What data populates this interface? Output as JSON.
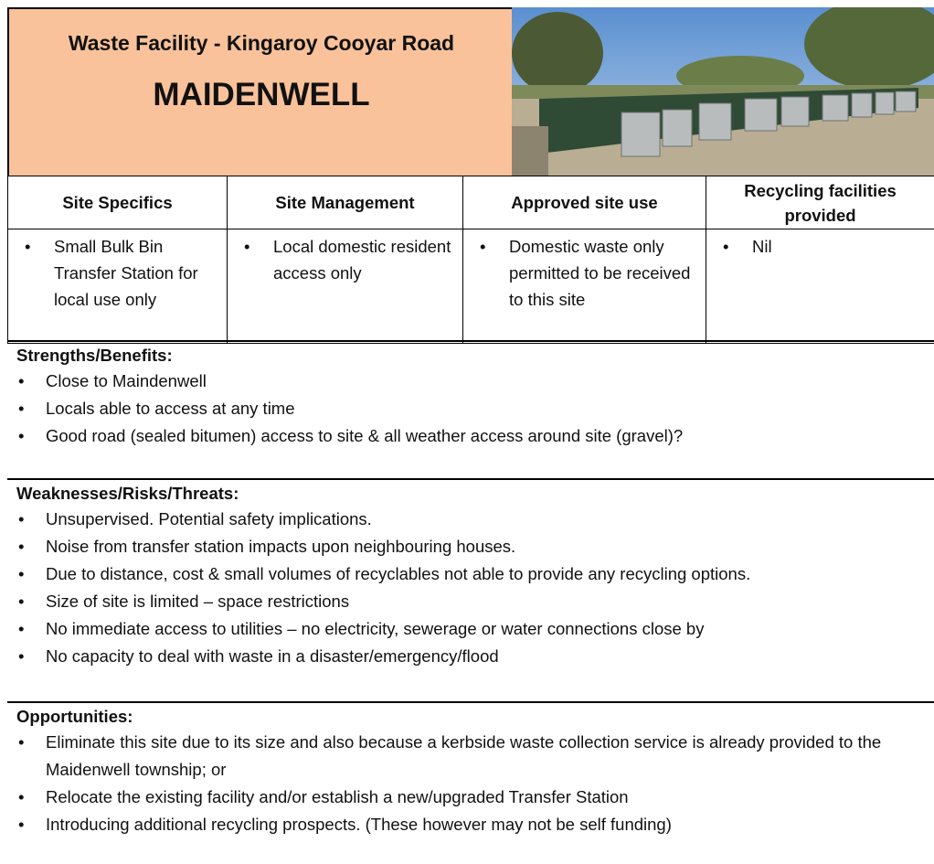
{
  "header": {
    "title": "Waste Facility - Kingaroy Cooyar Road",
    "subtitle": "MAIDENWELL"
  },
  "table": {
    "headers": [
      "Site Specifics",
      "Site Management",
      "Approved site use",
      "Recycling facilities provided"
    ],
    "rows": [
      [
        "Small Bulk Bin Transfer Station for local use only",
        "Local domestic resident access only",
        "Domestic waste only permitted to be received to this site",
        "Nil"
      ]
    ]
  },
  "sections": [
    {
      "heading": "Strengths/Benefits:",
      "items": [
        "Close to Maindenwell",
        "Locals able to access at any time",
        "Good road (sealed bitumen) access to site & all weather access around site (gravel)?"
      ]
    },
    {
      "heading": "Weaknesses/Risks/Threats:",
      "items": [
        "Unsupervised.  Potential safety implications.",
        "Noise from transfer station impacts upon neighbouring houses.",
        "Due to distance, cost & small volumes of recyclables not able to provide any recycling options.",
        "Size of site is limited – space restrictions",
        "No immediate access to utilities – no electricity, sewerage or water connections close by",
        "No capacity to deal with waste in a disaster/emergency/flood"
      ]
    },
    {
      "heading": "Opportunities:",
      "items": [
        "Eliminate this site due to its size and also because a kerbside waste collection service is already provided to the Maidenwell township; or",
        "Relocate the existing facility and/or establish a new/upgraded Transfer Station",
        "Introducing additional recycling prospects.  (These however may not be self funding)"
      ]
    }
  ]
}
